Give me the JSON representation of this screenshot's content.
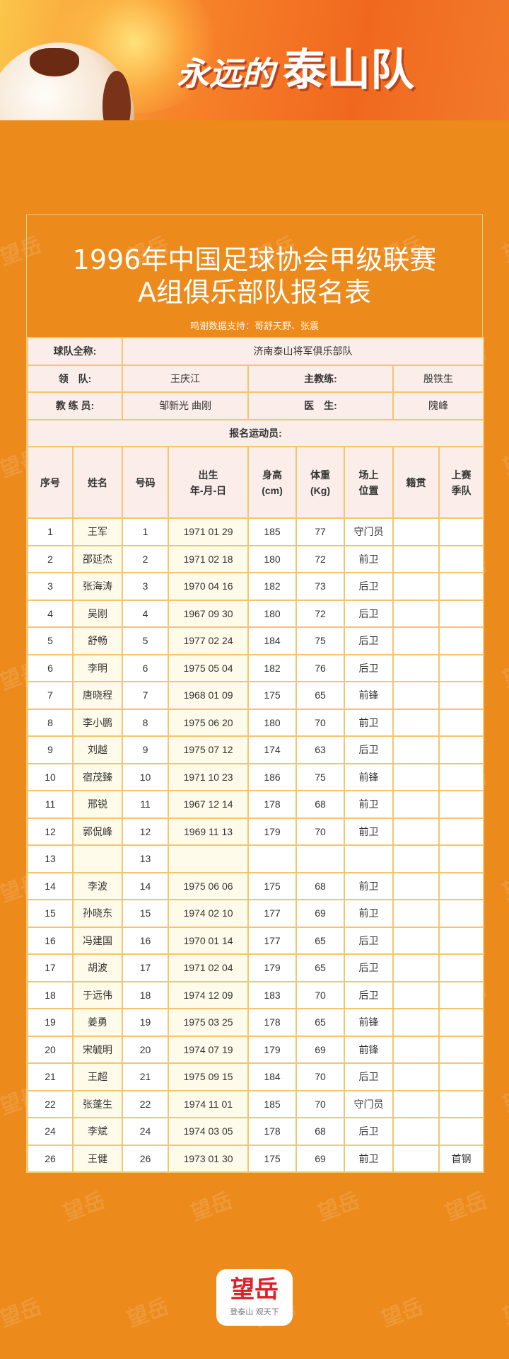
{
  "banner": {
    "slogan_part1": "永远的",
    "slogan_part2": "泰山队"
  },
  "title": {
    "line1": "1996年中国足球协会甲级联赛",
    "line2": "A组俱乐部队报名表",
    "credit": "鸣谢数据支持：哥舒天野、张震"
  },
  "info": {
    "team_label": "球队全称:",
    "team_value": "济南泰山将军俱乐部队",
    "leader_label": "领　队:",
    "leader_value": "王庆江",
    "head_coach_label": "主教练:",
    "head_coach_value": "殷铁生",
    "coaches_label": "教 练 员:",
    "coaches_value": "邹新光 曲刚",
    "doctor_label": "医　生:",
    "doctor_value": "隗峰",
    "players_label": "报名运动员:"
  },
  "columns": [
    "序号",
    "姓名",
    "号码",
    "出生\n年-月-日",
    "身高\n(cm)",
    "体重\n(Kg)",
    "场上\n位置",
    "籍贯",
    "上赛\n季队"
  ],
  "players": [
    [
      "1",
      "王军",
      "1",
      "1971 01 29",
      "185",
      "77",
      "守门员",
      "",
      ""
    ],
    [
      "2",
      "邵延杰",
      "2",
      "1971 02 18",
      "180",
      "72",
      "前卫",
      "",
      ""
    ],
    [
      "3",
      "张海涛",
      "3",
      "1970 04 16",
      "182",
      "73",
      "后卫",
      "",
      ""
    ],
    [
      "4",
      "吴刚",
      "4",
      "1967 09 30",
      "180",
      "72",
      "后卫",
      "",
      ""
    ],
    [
      "5",
      "舒畅",
      "5",
      "1977 02 24",
      "184",
      "75",
      "后卫",
      "",
      ""
    ],
    [
      "6",
      "李明",
      "6",
      "1975 05 04",
      "182",
      "76",
      "后卫",
      "",
      ""
    ],
    [
      "7",
      "唐晓程",
      "7",
      "1968 01 09",
      "175",
      "65",
      "前锋",
      "",
      ""
    ],
    [
      "8",
      "李小鹏",
      "8",
      "1975 06 20",
      "180",
      "70",
      "前卫",
      "",
      ""
    ],
    [
      "9",
      "刘越",
      "9",
      "1975 07 12",
      "174",
      "63",
      "后卫",
      "",
      ""
    ],
    [
      "10",
      "宿茂臻",
      "10",
      "1971 10 23",
      "186",
      "75",
      "前锋",
      "",
      ""
    ],
    [
      "11",
      "邢锐",
      "11",
      "1967 12 14",
      "178",
      "68",
      "前卫",
      "",
      ""
    ],
    [
      "12",
      "郭侃峰",
      "12",
      "1969 11 13",
      "179",
      "70",
      "前卫",
      "",
      ""
    ],
    [
      "13",
      "",
      "13",
      "",
      "",
      "",
      "",
      "",
      ""
    ],
    [
      "14",
      "李波",
      "14",
      "1975 06 06",
      "175",
      "68",
      "前卫",
      "",
      ""
    ],
    [
      "15",
      "孙晓东",
      "15",
      "1974 02 10",
      "177",
      "69",
      "前卫",
      "",
      ""
    ],
    [
      "16",
      "冯建国",
      "16",
      "1970 01 14",
      "177",
      "65",
      "后卫",
      "",
      ""
    ],
    [
      "17",
      "胡波",
      "17",
      "1971 02 04",
      "179",
      "65",
      "后卫",
      "",
      ""
    ],
    [
      "18",
      "于远伟",
      "18",
      "1974 12 09",
      "183",
      "70",
      "后卫",
      "",
      ""
    ],
    [
      "19",
      "姜勇",
      "19",
      "1975 03 25",
      "178",
      "65",
      "前锋",
      "",
      ""
    ],
    [
      "20",
      "宋毓明",
      "20",
      "1974 07 19",
      "179",
      "69",
      "前锋",
      "",
      ""
    ],
    [
      "21",
      "王超",
      "21",
      "1975 09 15",
      "184",
      "70",
      "后卫",
      "",
      ""
    ],
    [
      "22",
      "张蓬生",
      "22",
      "1974 11 01",
      "185",
      "70",
      "守门员",
      "",
      ""
    ],
    [
      "24",
      "李斌",
      "24",
      "1974 03 05",
      "178",
      "68",
      "后卫",
      "",
      ""
    ],
    [
      "26",
      "王健",
      "26",
      "1973 01 30",
      "175",
      "69",
      "前卫",
      "",
      "首钢"
    ]
  ],
  "footer": {
    "logo_text": "望岳",
    "tagline": "登泰山 观天下"
  },
  "watermark": "望岳",
  "colors": {
    "background": "#EC8A1C",
    "grid": "#F4C56C",
    "header_fill": "#FBEEEA",
    "logo_red": "#D9222A"
  }
}
